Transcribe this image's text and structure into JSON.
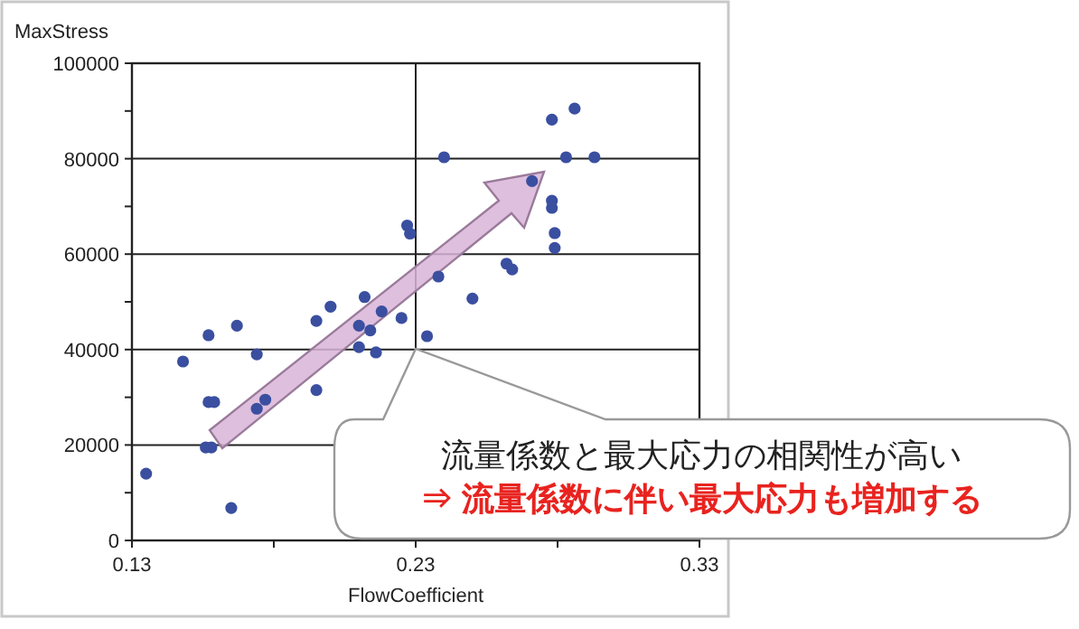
{
  "chart_data": {
    "type": "scatter",
    "xlabel": "FlowCoefficient",
    "ylabel": "MaxStress",
    "xlim": [
      0.13,
      0.33
    ],
    "ylim": [
      0,
      100000
    ],
    "xticks": [
      0.13,
      {
        "value": 0.18,
        "label": null
      },
      0.23,
      {
        "value": 0.28,
        "label": null
      },
      0.33
    ],
    "yticks": [
      0,
      {
        "value": 10000,
        "label": null
      },
      20000,
      {
        "value": 30000,
        "label": null
      },
      40000,
      {
        "value": 50000,
        "label": null
      },
      60000,
      {
        "value": 70000,
        "label": null
      },
      80000,
      {
        "value": 90000,
        "label": null
      },
      100000
    ],
    "grid": true,
    "marker": "circle",
    "series": [
      {
        "color": "#3a4fa0",
        "x": [
          0.135,
          0.148,
          0.157,
          0.157,
          0.159,
          0.156,
          0.158,
          0.165,
          0.167,
          0.174,
          0.177,
          0.174,
          0.195,
          0.195,
          0.2,
          0.21,
          0.21,
          0.212,
          0.214,
          0.218,
          0.216,
          0.225,
          0.227,
          0.228,
          0.238,
          0.234,
          0.24,
          0.25,
          0.262,
          0.264,
          0.271,
          0.278,
          0.278,
          0.278,
          0.279,
          0.279,
          0.283,
          0.286,
          0.293
        ],
        "values": [
          14000,
          37500,
          43000,
          29000,
          29000,
          19500,
          19500,
          6800,
          45000,
          27600,
          29500,
          39000,
          31500,
          46000,
          49000,
          45000,
          40500,
          51000,
          44000,
          48000,
          39400,
          46600,
          66000,
          64300,
          55300,
          42800,
          80300,
          50700,
          58000,
          56800,
          75300,
          88200,
          71200,
          69700,
          64400,
          61300,
          80300,
          90500,
          80300
        ]
      }
    ],
    "annotations": [
      "流量係数と最大応力の相関性が高い",
      "⇒ 流量係数に伴い最大応力も増加する"
    ]
  }
}
